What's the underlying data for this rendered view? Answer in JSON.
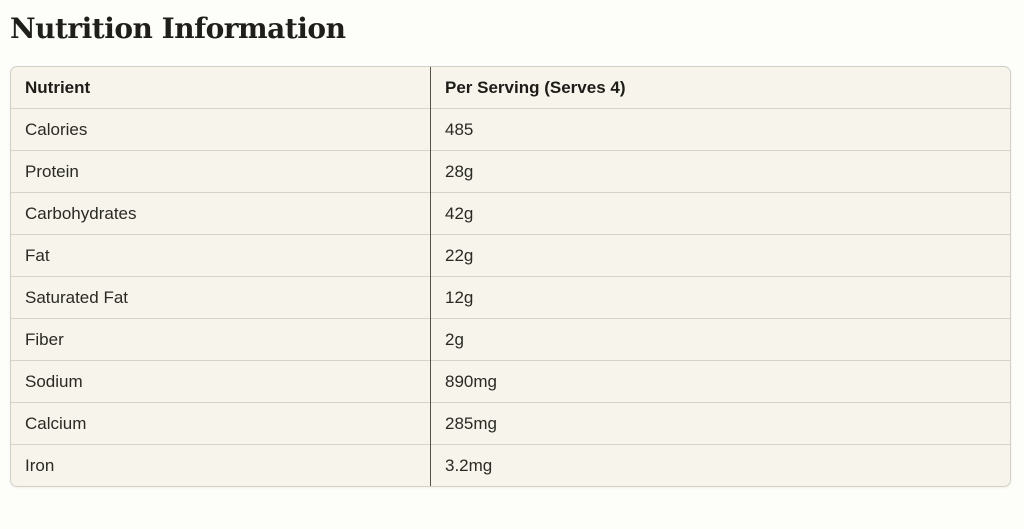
{
  "page": {
    "title": "Nutrition Information"
  },
  "table": {
    "header": {
      "nutrient": "Nutrient",
      "per_serving": "Per Serving (Serves 4)"
    },
    "rows": [
      {
        "nutrient": "Calories",
        "value": "485"
      },
      {
        "nutrient": "Protein",
        "value": "28g"
      },
      {
        "nutrient": "Carbohydrates",
        "value": "42g"
      },
      {
        "nutrient": "Fat",
        "value": "22g"
      },
      {
        "nutrient": "Saturated Fat",
        "value": "12g"
      },
      {
        "nutrient": "Fiber",
        "value": "2g"
      },
      {
        "nutrient": "Sodium",
        "value": "890mg"
      },
      {
        "nutrient": "Calcium",
        "value": "285mg"
      },
      {
        "nutrient": "Iron",
        "value": "3.2mg"
      }
    ]
  },
  "colors": {
    "page_background": "#fdfdfa",
    "table_background": "#f6f4eb",
    "outer_border": "#d2cfc5",
    "row_separator": "#d6d3c9",
    "column_divider": "#53514a",
    "text": "#2a2924",
    "title_text": "#1f1e1a"
  }
}
